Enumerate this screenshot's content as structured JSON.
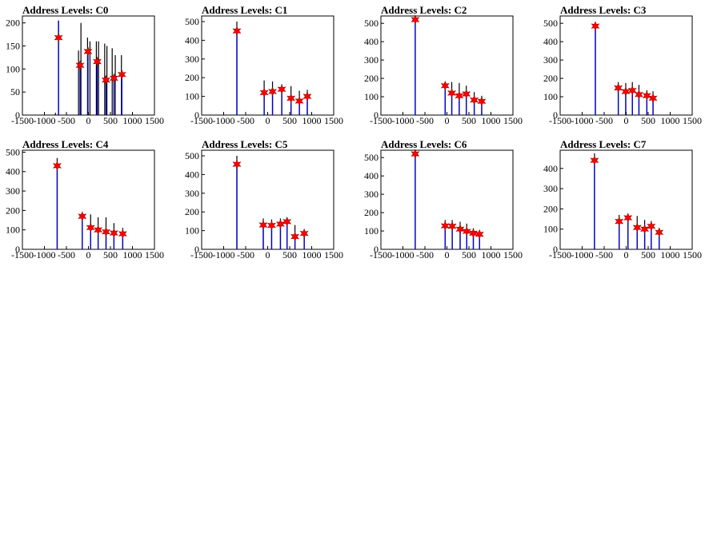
{
  "page": {
    "background": "#ffffff"
  },
  "colors": {
    "frame": "#000000",
    "hist_dark": "#000000",
    "hist_blue": "#0000cc",
    "marker": "#ff0000"
  },
  "chart_data": [
    {
      "type": "histogram",
      "title": "Address Levels: C0",
      "xlim": [
        -1500,
        1500
      ],
      "ylim": [
        0,
        215
      ],
      "xticks": [
        -1500,
        -1000,
        -500,
        0,
        500,
        1000,
        1500
      ],
      "yticks": [
        0,
        50,
        100,
        150,
        200
      ],
      "peaks_dark": [
        [
          -750,
          5
        ],
        [
          -680,
          205
        ],
        [
          -225,
          140
        ],
        [
          -170,
          200
        ],
        [
          -20,
          168
        ],
        [
          35,
          160
        ],
        [
          180,
          160
        ],
        [
          230,
          160
        ],
        [
          370,
          155
        ],
        [
          420,
          150
        ],
        [
          540,
          145
        ],
        [
          610,
          130
        ],
        [
          750,
          130
        ]
      ],
      "peaks_blue": [
        [
          -680,
          205
        ],
        [
          -190,
          115
        ],
        [
          -10,
          135
        ],
        [
          200,
          120
        ],
        [
          400,
          85
        ],
        [
          580,
          85
        ],
        [
          760,
          90
        ]
      ],
      "markers": [
        [
          -680,
          168
        ],
        [
          -190,
          108
        ],
        [
          -10,
          138
        ],
        [
          200,
          116
        ],
        [
          400,
          76
        ],
        [
          580,
          80
        ],
        [
          760,
          88
        ]
      ]
    },
    {
      "type": "histogram",
      "title": "Address Levels: C1",
      "xlim": [
        -1500,
        1500
      ],
      "ylim": [
        0,
        530
      ],
      "xticks": [
        -1500,
        -1000,
        -500,
        0,
        500,
        1000,
        1500
      ],
      "yticks": [
        0,
        100,
        200,
        300,
        400,
        500
      ],
      "peaks_dark": [
        [
          -700,
          500
        ],
        [
          -80,
          185
        ],
        [
          110,
          180
        ],
        [
          320,
          165
        ],
        [
          530,
          155
        ],
        [
          720,
          130
        ],
        [
          900,
          135
        ]
      ],
      "peaks_blue": [
        [
          -700,
          460
        ],
        [
          -80,
          120
        ],
        [
          110,
          125
        ],
        [
          320,
          135
        ],
        [
          530,
          90
        ],
        [
          720,
          80
        ],
        [
          900,
          100
        ]
      ],
      "markers": [
        [
          -700,
          450
        ],
        [
          -80,
          120
        ],
        [
          110,
          126
        ],
        [
          320,
          138
        ],
        [
          530,
          90
        ],
        [
          720,
          75
        ],
        [
          900,
          100
        ]
      ]
    },
    {
      "type": "histogram",
      "title": "Address Levels: C2",
      "xlim": [
        -1500,
        1500
      ],
      "ylim": [
        0,
        540
      ],
      "xticks": [
        -1500,
        -1000,
        -500,
        0,
        500,
        1000,
        1500
      ],
      "yticks": [
        0,
        100,
        200,
        300,
        400,
        500
      ],
      "peaks_dark": [
        [
          -720,
          525
        ],
        [
          -40,
          180
        ],
        [
          110,
          180
        ],
        [
          280,
          175
        ],
        [
          440,
          160
        ],
        [
          620,
          125
        ],
        [
          790,
          105
        ]
      ],
      "peaks_blue": [
        [
          -720,
          525
        ],
        [
          -40,
          160
        ],
        [
          110,
          120
        ],
        [
          280,
          110
        ],
        [
          440,
          115
        ],
        [
          620,
          85
        ],
        [
          790,
          75
        ]
      ],
      "markers": [
        [
          -720,
          520
        ],
        [
          -40,
          160
        ],
        [
          110,
          120
        ],
        [
          280,
          105
        ],
        [
          440,
          115
        ],
        [
          620,
          82
        ],
        [
          790,
          75
        ]
      ]
    },
    {
      "type": "histogram",
      "title": "Address Levels: C3",
      "xlim": [
        -1500,
        1500
      ],
      "ylim": [
        0,
        540
      ],
      "xticks": [
        -1500,
        -1000,
        -500,
        0,
        500,
        1000,
        1500
      ],
      "yticks": [
        0,
        100,
        200,
        300,
        400,
        500
      ],
      "peaks_dark": [
        [
          -700,
          505
        ],
        [
          -180,
          180
        ],
        [
          -10,
          175
        ],
        [
          140,
          180
        ],
        [
          290,
          165
        ],
        [
          470,
          135
        ],
        [
          610,
          130
        ]
      ],
      "peaks_blue": [
        [
          -700,
          490
        ],
        [
          -180,
          150
        ],
        [
          -10,
          130
        ],
        [
          140,
          135
        ],
        [
          290,
          110
        ],
        [
          470,
          105
        ],
        [
          610,
          90
        ]
      ],
      "markers": [
        [
          -700,
          485
        ],
        [
          -180,
          148
        ],
        [
          -10,
          128
        ],
        [
          140,
          134
        ],
        [
          290,
          112
        ],
        [
          470,
          106
        ],
        [
          610,
          92
        ]
      ]
    },
    {
      "type": "histogram",
      "title": "Address Levels: C4",
      "xlim": [
        -1500,
        1500
      ],
      "ylim": [
        0,
        510
      ],
      "xticks": [
        -1500,
        -1000,
        -500,
        0,
        500,
        1000,
        1500
      ],
      "yticks": [
        0,
        100,
        200,
        300,
        400,
        500
      ],
      "peaks_dark": [
        [
          -710,
          470
        ],
        [
          -140,
          175
        ],
        [
          50,
          180
        ],
        [
          220,
          165
        ],
        [
          400,
          165
        ],
        [
          580,
          135
        ],
        [
          780,
          110
        ]
      ],
      "peaks_blue": [
        [
          -710,
          430
        ],
        [
          -140,
          170
        ],
        [
          50,
          115
        ],
        [
          220,
          100
        ],
        [
          400,
          90
        ],
        [
          580,
          85
        ],
        [
          780,
          80
        ]
      ],
      "markers": [
        [
          -710,
          430
        ],
        [
          -140,
          170
        ],
        [
          50,
          112
        ],
        [
          220,
          100
        ],
        [
          400,
          90
        ],
        [
          580,
          84
        ],
        [
          780,
          80
        ]
      ]
    },
    {
      "type": "histogram",
      "title": "Address Levels: C5",
      "xlim": [
        -1500,
        1500
      ],
      "ylim": [
        0,
        530
      ],
      "xticks": [
        -1500,
        -1000,
        -500,
        0,
        500,
        1000,
        1500
      ],
      "yticks": [
        0,
        100,
        200,
        300,
        400,
        500
      ],
      "peaks_dark": [
        [
          -700,
          500
        ],
        [
          -100,
          165
        ],
        [
          90,
          160
        ],
        [
          290,
          165
        ],
        [
          440,
          170
        ],
        [
          620,
          130
        ],
        [
          830,
          100
        ]
      ],
      "peaks_blue": [
        [
          -700,
          460
        ],
        [
          -100,
          130
        ],
        [
          90,
          130
        ],
        [
          290,
          135
        ],
        [
          440,
          150
        ],
        [
          620,
          70
        ],
        [
          830,
          85
        ]
      ],
      "markers": [
        [
          -700,
          455
        ],
        [
          -100,
          130
        ],
        [
          90,
          128
        ],
        [
          290,
          135
        ],
        [
          440,
          148
        ],
        [
          620,
          68
        ],
        [
          830,
          85
        ]
      ]
    },
    {
      "type": "histogram",
      "title": "Address Levels: C6",
      "xlim": [
        -1500,
        1500
      ],
      "ylim": [
        0,
        540
      ],
      "xticks": [
        -1500,
        -1000,
        -500,
        0,
        500,
        1000,
        1500
      ],
      "yticks": [
        0,
        100,
        200,
        300,
        400,
        500
      ],
      "peaks_dark": [
        [
          -720,
          540
        ],
        [
          -40,
          160
        ],
        [
          120,
          160
        ],
        [
          300,
          150
        ],
        [
          450,
          140
        ],
        [
          600,
          115
        ],
        [
          740,
          100
        ]
      ],
      "peaks_blue": [
        [
          -720,
          520
        ],
        [
          -40,
          130
        ],
        [
          120,
          130
        ],
        [
          300,
          115
        ],
        [
          450,
          100
        ],
        [
          600,
          90
        ],
        [
          740,
          85
        ]
      ],
      "markers": [
        [
          -720,
          520
        ],
        [
          -40,
          128
        ],
        [
          120,
          126
        ],
        [
          300,
          110
        ],
        [
          450,
          98
        ],
        [
          600,
          88
        ],
        [
          740,
          82
        ]
      ]
    },
    {
      "type": "histogram",
      "title": "Address Levels: C7",
      "xlim": [
        -1500,
        1500
      ],
      "ylim": [
        0,
        490
      ],
      "xticks": [
        -1500,
        -1000,
        -500,
        0,
        500,
        1000,
        1500
      ],
      "yticks": [
        0,
        100,
        200,
        300,
        400
      ],
      "peaks_dark": [
        [
          -720,
          475
        ],
        [
          -160,
          170
        ],
        [
          40,
          165
        ],
        [
          250,
          165
        ],
        [
          420,
          145
        ],
        [
          570,
          140
        ],
        [
          750,
          105
        ]
      ],
      "peaks_blue": [
        [
          -720,
          445
        ],
        [
          -160,
          140
        ],
        [
          40,
          158
        ],
        [
          250,
          110
        ],
        [
          420,
          100
        ],
        [
          570,
          115
        ],
        [
          750,
          85
        ]
      ],
      "markers": [
        [
          -720,
          440
        ],
        [
          -160,
          138
        ],
        [
          40,
          156
        ],
        [
          250,
          108
        ],
        [
          420,
          100
        ],
        [
          570,
          114
        ],
        [
          750,
          84
        ]
      ]
    }
  ]
}
